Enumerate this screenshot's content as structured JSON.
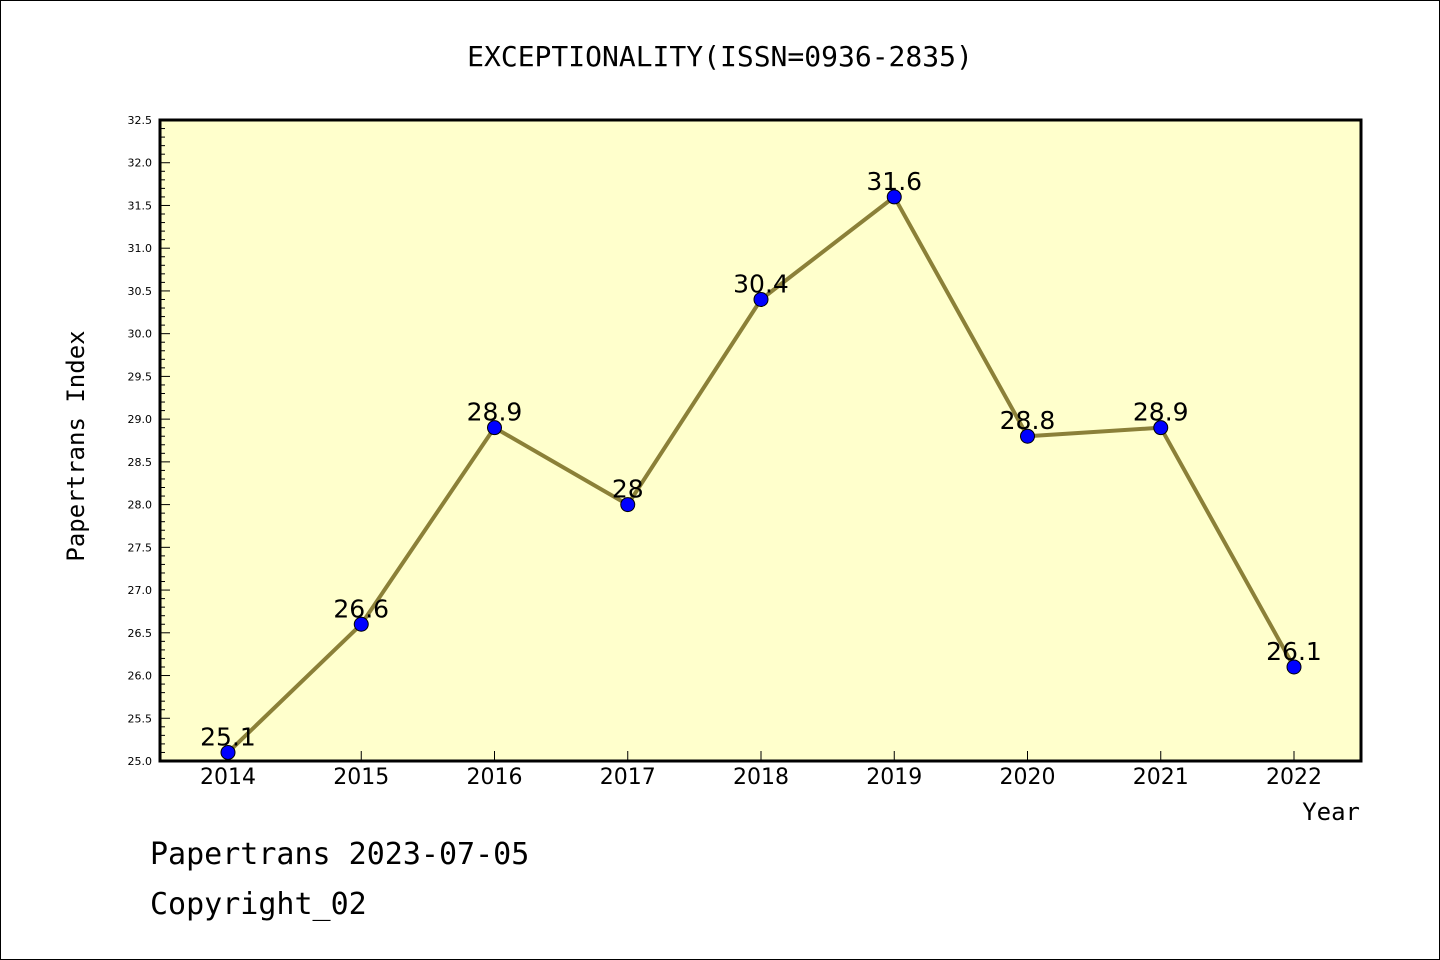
{
  "chart_data": {
    "type": "line",
    "title": "EXCEPTIONALITY(ISSN=0936-2835)",
    "xlabel": "Year",
    "ylabel": "Papertrans Index",
    "categories": [
      "2014",
      "2015",
      "2016",
      "2017",
      "2018",
      "2019",
      "2020",
      "2021",
      "2022"
    ],
    "values": [
      25.1,
      26.6,
      28.9,
      28.0,
      30.4,
      31.6,
      28.8,
      28.9,
      26.1
    ],
    "data_labels": [
      "25.1",
      "26.6",
      "28.9",
      "28",
      "30.4",
      "31.6",
      "28.8",
      "28.9",
      "26.1"
    ],
    "yticks": [
      "25.0",
      "25.5",
      "26.0",
      "26.5",
      "27.0",
      "27.5",
      "28.0",
      "28.5",
      "29.0",
      "29.5",
      "30.0",
      "30.5",
      "31.0",
      "31.5",
      "32.0",
      "32.5"
    ],
    "ylim": [
      25.0,
      32.5
    ],
    "grid": false,
    "colors": {
      "background": "#ffffcc",
      "line": "#8b8038",
      "marker": "#0000ff"
    }
  },
  "footer": {
    "line1": "Papertrans 2023-07-05",
    "line2": "Copyright_02"
  }
}
